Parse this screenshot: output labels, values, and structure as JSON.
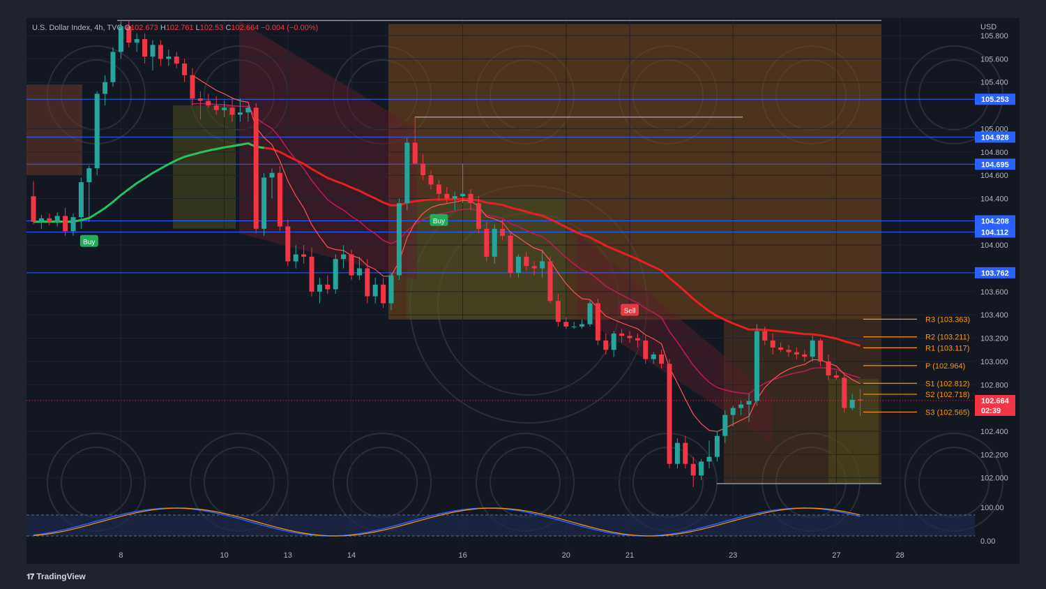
{
  "legend": {
    "symbol": "U.S. Dollar Index, 4h, TVC",
    "open_label": "O",
    "open": "102.673",
    "high_label": "H",
    "high": "102.761",
    "low_label": "L",
    "low": "102.53",
    "close_label": "C",
    "close": "102.664",
    "change": "−0.004 (−0.00%)"
  },
  "currency": "USD",
  "branding": "TradingView",
  "price_tags": [
    {
      "price": 105.253,
      "text": "105.253"
    },
    {
      "price": 104.928,
      "text": "104.928"
    },
    {
      "price": 104.695,
      "text": "104.695"
    },
    {
      "price": 104.208,
      "text": "104.208"
    },
    {
      "price": 104.112,
      "text": "104.112"
    },
    {
      "price": 103.762,
      "text": "103.762"
    }
  ],
  "last_price": {
    "price": 102.664,
    "text": "102.664",
    "countdown": "02:39"
  },
  "pivots": [
    {
      "name": "R3",
      "price": 103.363,
      "text": "R3 (103.363)"
    },
    {
      "name": "R2",
      "price": 103.211,
      "text": "R2 (103.211)"
    },
    {
      "name": "R1",
      "price": 103.117,
      "text": "R1 (103.117)"
    },
    {
      "name": "P",
      "price": 102.964,
      "text": "P (102.964)"
    },
    {
      "name": "S1",
      "price": 102.812,
      "text": "S1 (102.812)"
    },
    {
      "name": "S2",
      "price": 102.718,
      "text": "S2 (102.718)"
    },
    {
      "name": "S3",
      "price": 102.565,
      "text": "S3 (102.565)"
    }
  ],
  "signals": [
    {
      "type": "buy",
      "text": "Buy",
      "bar": 7
    },
    {
      "type": "buy",
      "text": "Buy",
      "bar": 51
    },
    {
      "type": "sell",
      "text": "Sell",
      "bar": 75
    }
  ],
  "oscillator": {
    "max_label": "100.00",
    "min_label": "0.00"
  },
  "colors": {
    "background": "#131722",
    "up": "#26a69a",
    "down": "#f23645",
    "level_line": "#2962ff",
    "pivot": "#ff9800",
    "ema": "#e91e1e",
    "green_ema": "#22c55e"
  },
  "chart_data": {
    "type": "candlestick",
    "symbol": "U.S. Dollar Index",
    "timeframe": "4h",
    "ylim": [
      101.8,
      105.95
    ],
    "yticks": [
      102.0,
      102.2,
      102.4,
      102.8,
      103.0,
      103.2,
      103.4,
      103.6,
      104.0,
      104.4,
      104.6,
      104.8,
      105.0,
      105.4,
      105.6,
      105.8
    ],
    "xticks": [
      {
        "label": "8",
        "bar": 11
      },
      {
        "label": "10",
        "bar": 24
      },
      {
        "label": "13",
        "bar": 32
      },
      {
        "label": "14",
        "bar": 40
      },
      {
        "label": "16",
        "bar": 54
      },
      {
        "label": "20",
        "bar": 67
      },
      {
        "label": "21",
        "bar": 75
      },
      {
        "label": "23",
        "bar": 88
      },
      {
        "label": "27",
        "bar": 101
      },
      {
        "label": "28",
        "bar": 109
      }
    ],
    "candles": [
      [
        104.42,
        104.55,
        104.18,
        104.2
      ],
      [
        104.2,
        104.26,
        104.14,
        104.23
      ],
      [
        104.23,
        104.27,
        104.17,
        104.2
      ],
      [
        104.2,
        104.28,
        104.16,
        104.25
      ],
      [
        104.25,
        104.32,
        104.08,
        104.12
      ],
      [
        104.12,
        104.27,
        104.08,
        104.24
      ],
      [
        104.24,
        104.58,
        104.14,
        104.54
      ],
      [
        104.54,
        104.68,
        104.2,
        104.66
      ],
      [
        104.66,
        105.32,
        104.6,
        105.3
      ],
      [
        105.3,
        105.46,
        105.2,
        105.4
      ],
      [
        105.4,
        105.7,
        105.36,
        105.66
      ],
      [
        105.66,
        105.92,
        105.6,
        105.88
      ],
      [
        105.88,
        105.93,
        105.7,
        105.74
      ],
      [
        105.74,
        105.82,
        105.66,
        105.77
      ],
      [
        105.77,
        105.82,
        105.56,
        105.62
      ],
      [
        105.62,
        105.76,
        105.5,
        105.72
      ],
      [
        105.72,
        105.76,
        105.54,
        105.6
      ],
      [
        105.6,
        105.68,
        105.54,
        105.62
      ],
      [
        105.62,
        105.66,
        105.52,
        105.56
      ],
      [
        105.56,
        105.6,
        105.4,
        105.46
      ],
      [
        105.46,
        105.52,
        105.2,
        105.26
      ],
      [
        105.26,
        105.32,
        105.08,
        105.24
      ],
      [
        105.24,
        105.3,
        105.18,
        105.2
      ],
      [
        105.2,
        105.28,
        105.12,
        105.16
      ],
      [
        105.16,
        105.24,
        105.1,
        105.18
      ],
      [
        105.18,
        105.26,
        105.06,
        105.12
      ],
      [
        105.12,
        105.26,
        105.06,
        105.14
      ],
      [
        105.14,
        105.2,
        105.06,
        105.18
      ],
      [
        105.18,
        105.22,
        104.1,
        104.14
      ],
      [
        104.14,
        104.62,
        104.08,
        104.58
      ],
      [
        104.58,
        104.66,
        104.4,
        104.62
      ],
      [
        104.62,
        104.68,
        104.12,
        104.16
      ],
      [
        104.16,
        104.22,
        103.82,
        103.86
      ],
      [
        103.86,
        104.0,
        103.8,
        103.92
      ],
      [
        103.92,
        104.0,
        103.84,
        103.9
      ],
      [
        103.9,
        103.98,
        103.56,
        103.6
      ],
      [
        103.6,
        103.72,
        103.5,
        103.66
      ],
      [
        103.66,
        103.74,
        103.58,
        103.62
      ],
      [
        103.62,
        103.92,
        103.58,
        103.88
      ],
      [
        103.88,
        104.0,
        103.8,
        103.92
      ],
      [
        103.92,
        103.96,
        103.7,
        103.74
      ],
      [
        103.74,
        103.9,
        103.7,
        103.8
      ],
      [
        103.8,
        103.88,
        103.5,
        103.56
      ],
      [
        103.56,
        103.72,
        103.5,
        103.66
      ],
      [
        103.66,
        103.72,
        103.46,
        103.5
      ],
      [
        103.5,
        103.76,
        103.44,
        103.74
      ],
      [
        103.74,
        104.4,
        103.7,
        104.36
      ],
      [
        104.36,
        104.92,
        104.3,
        104.88
      ],
      [
        104.88,
        105.1,
        104.7,
        104.7
      ],
      [
        104.7,
        104.78,
        104.56,
        104.6
      ],
      [
        104.6,
        104.64,
        104.48,
        104.52
      ],
      [
        104.52,
        104.56,
        104.38,
        104.44
      ],
      [
        104.44,
        104.5,
        104.36,
        104.4
      ],
      [
        104.4,
        104.46,
        104.3,
        104.42
      ],
      [
        104.42,
        104.7,
        104.36,
        104.44
      ],
      [
        104.44,
        104.48,
        104.3,
        104.36
      ],
      [
        104.36,
        104.42,
        104.1,
        104.14
      ],
      [
        104.14,
        104.2,
        103.86,
        103.9
      ],
      [
        103.9,
        104.18,
        103.84,
        104.14
      ],
      [
        104.14,
        104.22,
        104.04,
        104.08
      ],
      [
        104.08,
        104.12,
        103.72,
        103.76
      ],
      [
        103.76,
        103.92,
        103.72,
        103.9
      ],
      [
        103.9,
        103.94,
        103.78,
        103.82
      ],
      [
        103.82,
        103.86,
        103.74,
        103.8
      ],
      [
        103.8,
        103.96,
        103.72,
        103.86
      ],
      [
        103.86,
        103.9,
        103.5,
        103.52
      ],
      [
        103.52,
        103.58,
        103.3,
        103.34
      ],
      [
        103.34,
        103.38,
        103.28,
        103.3
      ],
      [
        103.3,
        103.34,
        103.28,
        103.3
      ],
      [
        103.3,
        103.36,
        103.28,
        103.32
      ],
      [
        103.32,
        103.52,
        103.3,
        103.5
      ],
      [
        103.5,
        103.54,
        103.14,
        103.18
      ],
      [
        103.18,
        103.24,
        103.06,
        103.1
      ],
      [
        103.1,
        103.26,
        103.04,
        103.24
      ],
      [
        103.24,
        103.28,
        103.16,
        103.22
      ],
      [
        103.22,
        103.26,
        103.16,
        103.2
      ],
      [
        103.2,
        103.24,
        103.12,
        103.18
      ],
      [
        103.18,
        103.22,
        102.98,
        103.02
      ],
      [
        103.02,
        103.08,
        102.98,
        103.06
      ],
      [
        103.06,
        103.1,
        102.94,
        102.98
      ],
      [
        102.98,
        103.02,
        102.08,
        102.12
      ],
      [
        102.12,
        102.34,
        102.08,
        102.3
      ],
      [
        102.3,
        102.36,
        102.08,
        102.12
      ],
      [
        102.12,
        102.18,
        101.92,
        102.02
      ],
      [
        102.02,
        102.16,
        101.98,
        102.14
      ],
      [
        102.14,
        102.32,
        102.08,
        102.18
      ],
      [
        102.18,
        102.4,
        102.14,
        102.36
      ],
      [
        102.36,
        102.58,
        102.3,
        102.54
      ],
      [
        102.54,
        102.62,
        102.44,
        102.6
      ],
      [
        102.6,
        102.66,
        102.54,
        102.63
      ],
      [
        102.63,
        102.72,
        102.48,
        102.66
      ],
      [
        102.66,
        103.32,
        102.62,
        103.26
      ],
      [
        103.26,
        103.3,
        103.14,
        103.18
      ],
      [
        103.18,
        103.24,
        103.06,
        103.12
      ],
      [
        103.12,
        103.16,
        103.08,
        103.1
      ],
      [
        103.1,
        103.14,
        103.04,
        103.08
      ],
      [
        103.08,
        103.12,
        103.02,
        103.06
      ],
      [
        103.06,
        103.1,
        103.0,
        103.04
      ],
      [
        103.04,
        103.22,
        103.0,
        103.18
      ],
      [
        103.18,
        103.2,
        102.96,
        103.0
      ],
      [
        103.0,
        103.06,
        102.84,
        102.88
      ],
      [
        102.88,
        102.92,
        102.84,
        102.86
      ],
      [
        102.86,
        102.9,
        102.56,
        102.6
      ],
      [
        102.6,
        102.72,
        102.58,
        102.67
      ],
      [
        102.673,
        102.761,
        102.53,
        102.664
      ]
    ]
  }
}
